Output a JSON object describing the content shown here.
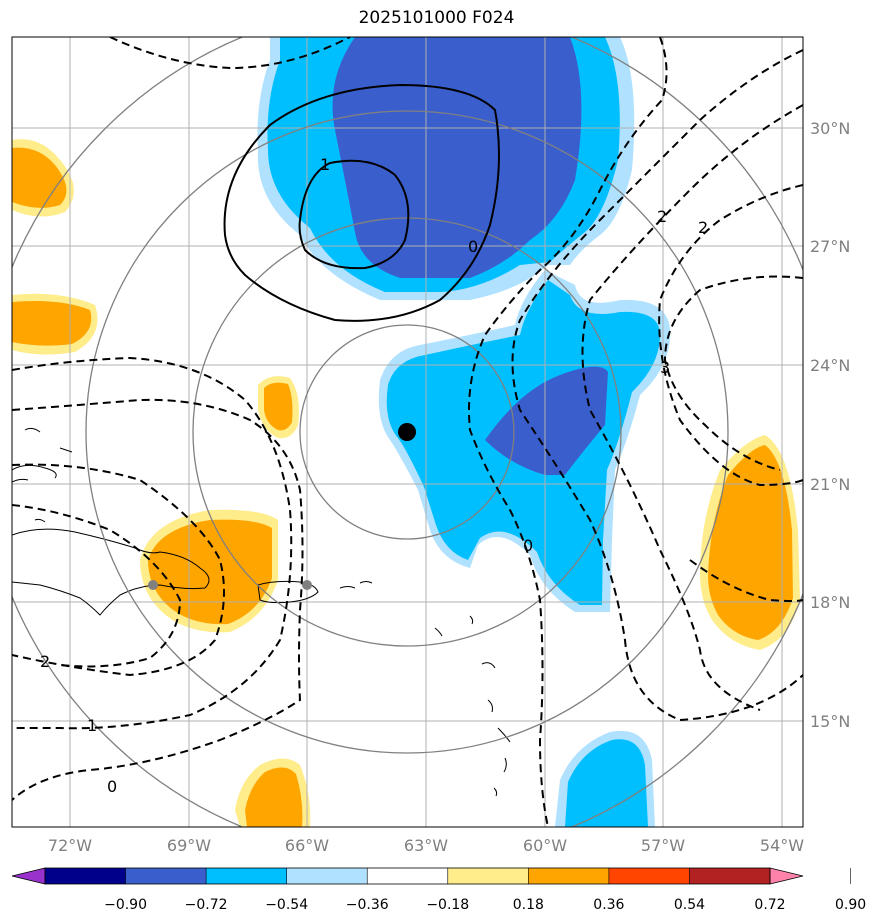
{
  "title": "2025101000 F024",
  "lon_labels": [
    "72°W",
    "69°W",
    "66°W",
    "63°W",
    "60°W",
    "57°W",
    "54°W"
  ],
  "lat_labels": [
    "30°N",
    "27°N",
    "24°N",
    "21°N",
    "18°N",
    "15°N"
  ],
  "colorbar": {
    "ticks": [
      "−0.90",
      "−0.72",
      "−0.54",
      "−0.36",
      "−0.18",
      "0.18",
      "0.36",
      "0.54",
      "0.72",
      "0.90"
    ],
    "colors": [
      "#9932cc",
      "#00008b",
      "#3a5fcd",
      "#00bfff",
      "#b0e2ff",
      "#ffffff",
      "#ffec8b",
      "#ffa500",
      "#ff4500",
      "#b22222",
      "#ff82ab"
    ]
  },
  "contour_labels": [
    {
      "id": "c1-top",
      "text": "1"
    },
    {
      "id": "c0-mid",
      "text": "0"
    },
    {
      "id": "c2-ne-a",
      "text": "2"
    },
    {
      "id": "c2-ne-b",
      "text": "2"
    },
    {
      "id": "c3-e",
      "text": "3"
    },
    {
      "id": "c0-se",
      "text": "0"
    },
    {
      "id": "c2-w",
      "text": "2"
    },
    {
      "id": "c1-w",
      "text": "1"
    },
    {
      "id": "c0-sw",
      "text": "0"
    }
  ],
  "colors": {
    "deep_blue": "#3a5fcd",
    "blue": "#00bfff",
    "light_blue": "#b0e2ff",
    "orange": "#ffa500",
    "yellow": "#ffec8b",
    "grid": "#b0b0b0",
    "range_ring": "#808080"
  },
  "center_marker": "storm-center-dot"
}
